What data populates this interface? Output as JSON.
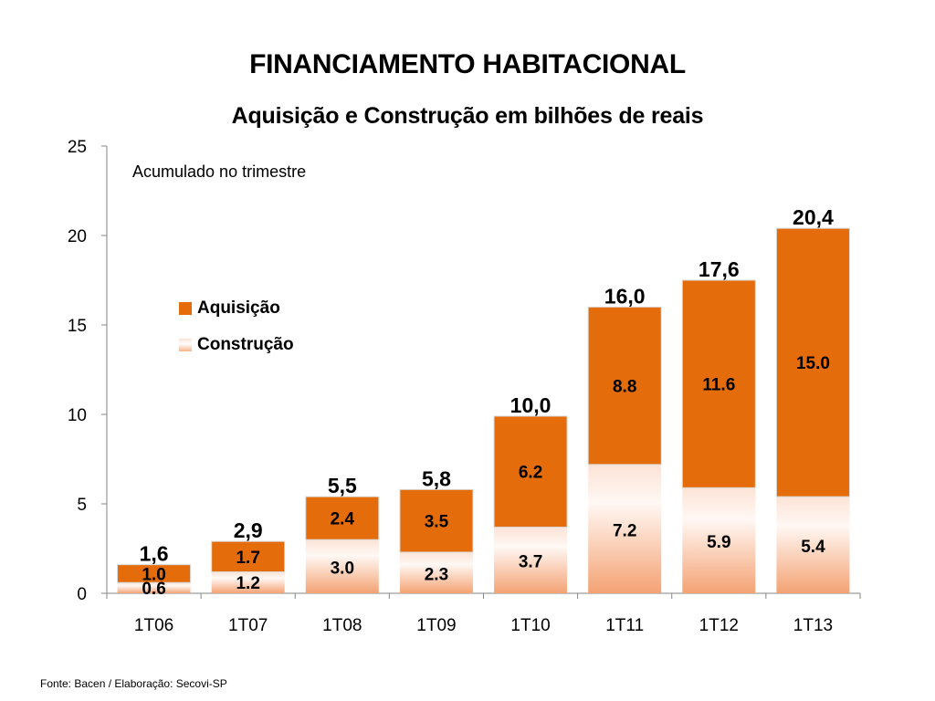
{
  "header": {
    "title": "FINANCIAMENTO HABITACIONAL",
    "subtitle": "Aquisição e Construção em bilhões de reais"
  },
  "annotation": "Acumulado no trimestre",
  "footer": "Fonte: Bacen /  Elaboração: Secovi-SP",
  "colors": {
    "aquisicao": "#E46C0A",
    "construcao_light": "#FFF5F0",
    "construcao_dark": "#F4A576"
  },
  "chart_data": {
    "type": "bar",
    "stacked": true,
    "title": "FINANCIAMENTO HABITACIONAL",
    "subtitle": "Aquisição e Construção em bilhões de reais",
    "categories": [
      "1T06",
      "1T07",
      "1T08",
      "1T09",
      "1T10",
      "1T11",
      "1T12",
      "1T13"
    ],
    "series": [
      {
        "name": "Construção",
        "values": [
          0.6,
          1.2,
          3.0,
          2.3,
          3.7,
          7.2,
          5.9,
          5.4
        ],
        "labels": [
          "0.6",
          "1.2",
          "3.0",
          "2.3",
          "3.7",
          "7.2",
          "5.9",
          "5.4"
        ]
      },
      {
        "name": "Aquisição",
        "values": [
          1.0,
          1.7,
          2.4,
          3.5,
          6.2,
          8.8,
          11.6,
          15.0
        ],
        "labels": [
          "1.0",
          "1.7",
          "2.4",
          "3.5",
          "6.2",
          "8.8",
          "11.6",
          "15.0"
        ]
      }
    ],
    "totals": [
      1.6,
      2.9,
      5.5,
      5.8,
      10.0,
      16.0,
      17.6,
      20.4
    ],
    "total_labels": [
      "1,6",
      "2,9",
      "5,5",
      "5,8",
      "10,0",
      "16,0",
      "17,6",
      "20,4"
    ],
    "yticks": [
      "0",
      "5",
      "10",
      "15",
      "20",
      "25"
    ],
    "ylim": [
      0,
      25
    ],
    "legend": [
      "Aquisição",
      "Construção"
    ],
    "legend_position": "left"
  }
}
